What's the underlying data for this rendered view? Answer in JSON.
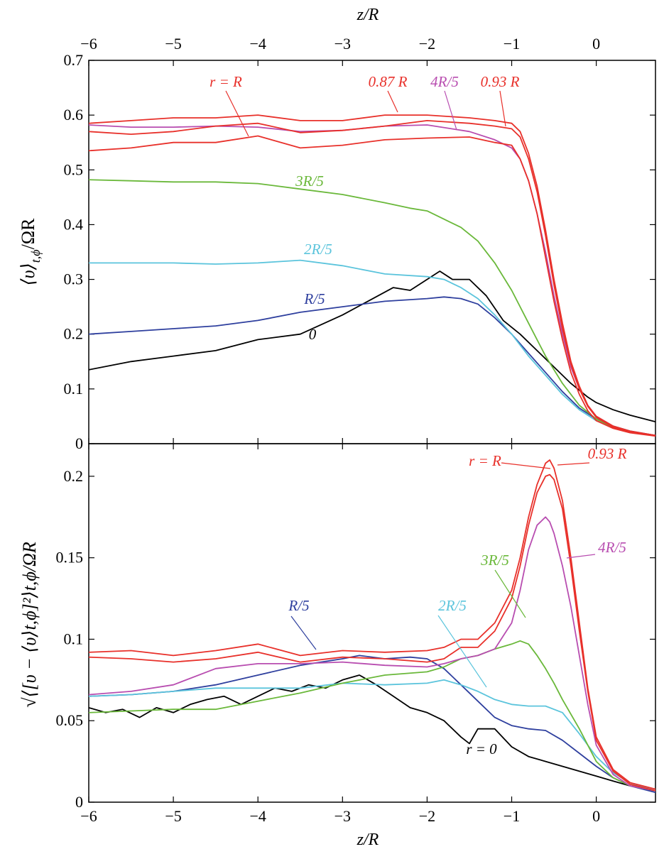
{
  "chart_data": [
    {
      "type": "line",
      "panel": "top",
      "top_xlabel": "z/R",
      "xlabel": "",
      "ylabel": "⟨υ⟩",
      "ylabel_sub": "t,ϕ",
      "ylabel_tail": "/ΩR",
      "xlim": [
        -6,
        0.7
      ],
      "ylim": [
        0,
        0.7
      ],
      "x_ticks": [
        -6,
        -5,
        -4,
        -3,
        -2,
        -1,
        0
      ],
      "x_tick_labels": [
        "−6",
        "−5",
        "−4",
        "−3",
        "−2",
        "−1",
        "0"
      ],
      "y_ticks": [
        0,
        0.1,
        0.2,
        0.3,
        0.4,
        0.5,
        0.6,
        0.7
      ],
      "y_tick_labels": [
        "0",
        "0.1",
        "0.2",
        "0.3",
        "0.4",
        "0.5",
        "0.6",
        "0.7"
      ],
      "series": [
        {
          "name": "0",
          "color": "#000000",
          "x": [
            -6,
            -5.5,
            -5,
            -4.5,
            -4,
            -3.5,
            -3,
            -2.7,
            -2.4,
            -2.2,
            -2,
            -1.85,
            -1.7,
            -1.5,
            -1.3,
            -1.1,
            -0.9,
            -0.7,
            -0.5,
            -0.3,
            -0.1,
            0,
            0.2,
            0.4,
            0.7
          ],
          "y": [
            0.135,
            0.15,
            0.16,
            0.17,
            0.19,
            0.2,
            0.235,
            0.26,
            0.285,
            0.28,
            0.3,
            0.315,
            0.3,
            0.3,
            0.27,
            0.225,
            0.2,
            0.17,
            0.14,
            0.11,
            0.085,
            0.075,
            0.062,
            0.052,
            0.04
          ]
        },
        {
          "name": "R/5",
          "color": "#2e3f9e",
          "x": [
            -6,
            -5.5,
            -5,
            -4.5,
            -4,
            -3.5,
            -3,
            -2.5,
            -2,
            -1.8,
            -1.6,
            -1.4,
            -1.2,
            -1,
            -0.8,
            -0.6,
            -0.4,
            -0.2,
            0,
            0.2,
            0.4,
            0.7
          ],
          "y": [
            0.2,
            0.205,
            0.21,
            0.215,
            0.225,
            0.24,
            0.25,
            0.26,
            0.265,
            0.268,
            0.265,
            0.255,
            0.23,
            0.2,
            0.165,
            0.13,
            0.095,
            0.065,
            0.045,
            0.032,
            0.023,
            0.015
          ]
        },
        {
          "name": "2R/5",
          "color": "#5bc4dc",
          "x": [
            -6,
            -5.5,
            -5,
            -4.5,
            -4,
            -3.5,
            -3,
            -2.5,
            -2,
            -1.8,
            -1.6,
            -1.4,
            -1.2,
            -1,
            -0.8,
            -0.6,
            -0.4,
            -0.2,
            0,
            0.2,
            0.4,
            0.7
          ],
          "y": [
            0.33,
            0.33,
            0.33,
            0.328,
            0.33,
            0.335,
            0.325,
            0.31,
            0.305,
            0.3,
            0.285,
            0.265,
            0.235,
            0.2,
            0.16,
            0.125,
            0.09,
            0.062,
            0.042,
            0.03,
            0.022,
            0.015
          ]
        },
        {
          "name": "3R/5",
          "color": "#6ab83a",
          "x": [
            -6,
            -5.5,
            -5,
            -4.5,
            -4,
            -3.5,
            -3,
            -2.5,
            -2.2,
            -2,
            -1.8,
            -1.6,
            -1.4,
            -1.2,
            -1,
            -0.8,
            -0.6,
            -0.4,
            -0.2,
            0,
            0.2,
            0.4,
            0.7
          ],
          "y": [
            0.482,
            0.48,
            0.478,
            0.478,
            0.475,
            0.465,
            0.455,
            0.44,
            0.43,
            0.425,
            0.41,
            0.395,
            0.37,
            0.33,
            0.28,
            0.22,
            0.16,
            0.11,
            0.07,
            0.045,
            0.03,
            0.022,
            0.015
          ]
        },
        {
          "name": "4R/5",
          "color": "#b84db0",
          "x": [
            -6,
            -5.5,
            -5,
            -4.5,
            -4,
            -3.5,
            -3,
            -2.5,
            -2,
            -1.5,
            -1.2,
            -1,
            -0.9,
            -0.8,
            -0.7,
            -0.6,
            -0.5,
            -0.4,
            -0.3,
            -0.2,
            -0.1,
            0,
            0.2,
            0.4,
            0.7
          ],
          "y": [
            0.582,
            0.578,
            0.578,
            0.58,
            0.578,
            0.57,
            0.572,
            0.58,
            0.582,
            0.57,
            0.555,
            0.54,
            0.52,
            0.48,
            0.42,
            0.35,
            0.27,
            0.2,
            0.14,
            0.1,
            0.07,
            0.05,
            0.032,
            0.022,
            0.015
          ]
        },
        {
          "name": "r = R",
          "color": "#e8302a",
          "x": [
            -6,
            -5.5,
            -5,
            -4.5,
            -4,
            -3.5,
            -3,
            -2.5,
            -2,
            -1.5,
            -1.2,
            -1,
            -0.9,
            -0.8,
            -0.7,
            -0.6,
            -0.5,
            -0.4,
            -0.3,
            -0.2,
            -0.1,
            0,
            0.2,
            0.4,
            0.7
          ],
          "y": [
            0.535,
            0.54,
            0.55,
            0.55,
            0.562,
            0.54,
            0.545,
            0.555,
            0.558,
            0.56,
            0.55,
            0.545,
            0.52,
            0.48,
            0.42,
            0.34,
            0.26,
            0.19,
            0.13,
            0.09,
            0.06,
            0.042,
            0.028,
            0.02,
            0.014
          ]
        },
        {
          "name": "0.87 R",
          "color": "#e8302a",
          "x": [
            -6,
            -5.5,
            -5,
            -4.5,
            -4,
            -3.5,
            -3,
            -2.5,
            -2,
            -1.5,
            -1.2,
            -1,
            -0.9,
            -0.8,
            -0.7,
            -0.6,
            -0.5,
            -0.4,
            -0.3,
            -0.2,
            -0.1,
            0,
            0.2,
            0.4,
            0.7
          ],
          "y": [
            0.57,
            0.565,
            0.57,
            0.58,
            0.585,
            0.568,
            0.572,
            0.58,
            0.59,
            0.585,
            0.58,
            0.575,
            0.56,
            0.52,
            0.46,
            0.38,
            0.29,
            0.21,
            0.145,
            0.1,
            0.068,
            0.048,
            0.03,
            0.022,
            0.015
          ]
        },
        {
          "name": "0.93 R",
          "color": "#e8302a",
          "x": [
            -6,
            -5.5,
            -5,
            -4.5,
            -4,
            -3.5,
            -3,
            -2.5,
            -2,
            -1.5,
            -1.2,
            -1,
            -0.9,
            -0.8,
            -0.7,
            -0.6,
            -0.5,
            -0.4,
            -0.3,
            -0.2,
            -0.1,
            0,
            0.2,
            0.4,
            0.7
          ],
          "y": [
            0.585,
            0.59,
            0.595,
            0.595,
            0.6,
            0.59,
            0.59,
            0.6,
            0.6,
            0.595,
            0.59,
            0.585,
            0.57,
            0.53,
            0.47,
            0.39,
            0.3,
            0.22,
            0.15,
            0.105,
            0.07,
            0.05,
            0.032,
            0.023,
            0.015
          ]
        }
      ],
      "annotations": [
        {
          "text": "r = R",
          "color": "#e8302a"
        },
        {
          "text": "0.87 R",
          "color": "#e8302a"
        },
        {
          "text": "4R/5",
          "color": "#b84db0"
        },
        {
          "text": "0.93 R",
          "color": "#e8302a"
        },
        {
          "text": "3R/5",
          "color": "#6ab83a"
        },
        {
          "text": "2R/5",
          "color": "#5bc4dc"
        },
        {
          "text": "R/5",
          "color": "#2e3f9e"
        },
        {
          "text": "0",
          "color": "#000000"
        }
      ]
    },
    {
      "type": "line",
      "panel": "bottom",
      "xlabel": "z/R",
      "ylabel": "√⟨[υ − ⟨υ⟩t,ϕ]²⟩t,ϕ/ΩR",
      "xlim": [
        -6,
        0.7
      ],
      "ylim": [
        0,
        0.22
      ],
      "x_ticks": [
        -6,
        -5,
        -4,
        -3,
        -2,
        -1,
        0
      ],
      "x_tick_labels": [
        "−6",
        "−5",
        "−4",
        "−3",
        "−2",
        "−1",
        "0"
      ],
      "y_ticks": [
        0,
        0.05,
        0.1,
        0.15,
        0.2
      ],
      "y_tick_labels": [
        "0",
        "0.05",
        "0.1",
        "0.15",
        "0.2"
      ],
      "series": [
        {
          "name": "r = 0",
          "color": "#000000",
          "x": [
            -6,
            -5.8,
            -5.6,
            -5.4,
            -5.2,
            -5,
            -4.8,
            -4.6,
            -4.4,
            -4.2,
            -4,
            -3.8,
            -3.6,
            -3.4,
            -3.2,
            -3,
            -2.8,
            -2.6,
            -2.4,
            -2.2,
            -2,
            -1.8,
            -1.6,
            -1.5,
            -1.4,
            -1.2,
            -1,
            -0.8,
            -0.6,
            -0.4,
            -0.2,
            0,
            0.2,
            0.4,
            0.7
          ],
          "y": [
            0.058,
            0.055,
            0.057,
            0.052,
            0.058,
            0.055,
            0.06,
            0.063,
            0.065,
            0.06,
            0.065,
            0.07,
            0.068,
            0.072,
            0.07,
            0.075,
            0.078,
            0.072,
            0.065,
            0.058,
            0.055,
            0.05,
            0.04,
            0.036,
            0.045,
            0.045,
            0.034,
            0.028,
            0.025,
            0.022,
            0.019,
            0.016,
            0.013,
            0.01,
            0.007
          ]
        },
        {
          "name": "R/5",
          "color": "#2e3f9e",
          "x": [
            -6,
            -5.5,
            -5,
            -4.5,
            -4,
            -3.5,
            -3,
            -2.8,
            -2.5,
            -2.2,
            -2,
            -1.8,
            -1.6,
            -1.4,
            -1.2,
            -1,
            -0.8,
            -0.6,
            -0.4,
            -0.2,
            0,
            0.2,
            0.4,
            0.7
          ],
          "y": [
            0.065,
            0.066,
            0.068,
            0.072,
            0.078,
            0.084,
            0.088,
            0.09,
            0.088,
            0.089,
            0.088,
            0.082,
            0.072,
            0.062,
            0.052,
            0.047,
            0.045,
            0.044,
            0.038,
            0.03,
            0.022,
            0.015,
            0.01,
            0.006
          ]
        },
        {
          "name": "2R/5",
          "color": "#5bc4dc",
          "x": [
            -6,
            -5.5,
            -5,
            -4.5,
            -4,
            -3.5,
            -3,
            -2.5,
            -2,
            -1.8,
            -1.6,
            -1.4,
            -1.2,
            -1,
            -0.8,
            -0.6,
            -0.4,
            -0.2,
            0,
            0.2,
            0.4,
            0.7
          ],
          "y": [
            0.065,
            0.066,
            0.068,
            0.07,
            0.07,
            0.07,
            0.073,
            0.072,
            0.073,
            0.075,
            0.072,
            0.068,
            0.063,
            0.06,
            0.059,
            0.059,
            0.055,
            0.042,
            0.028,
            0.018,
            0.012,
            0.007
          ]
        },
        {
          "name": "3R/5",
          "color": "#6ab83a",
          "x": [
            -6,
            -5.5,
            -5,
            -4.5,
            -4,
            -3.5,
            -3,
            -2.5,
            -2,
            -1.8,
            -1.6,
            -1.4,
            -1.2,
            -1,
            -0.9,
            -0.8,
            -0.7,
            -0.6,
            -0.5,
            -0.4,
            -0.2,
            0,
            0.2,
            0.4,
            0.7
          ],
          "y": [
            0.055,
            0.056,
            0.057,
            0.057,
            0.062,
            0.067,
            0.073,
            0.078,
            0.08,
            0.083,
            0.088,
            0.09,
            0.094,
            0.097,
            0.099,
            0.097,
            0.09,
            0.082,
            0.073,
            0.063,
            0.045,
            0.025,
            0.015,
            0.01,
            0.007
          ]
        },
        {
          "name": "4R/5",
          "color": "#b84db0",
          "x": [
            -6,
            -5.5,
            -5,
            -4.5,
            -4,
            -3.5,
            -3,
            -2.5,
            -2,
            -1.8,
            -1.6,
            -1.4,
            -1.2,
            -1,
            -0.9,
            -0.8,
            -0.7,
            -0.6,
            -0.55,
            -0.5,
            -0.4,
            -0.3,
            -0.2,
            -0.1,
            0,
            0.2,
            0.4,
            0.7
          ],
          "y": [
            0.066,
            0.068,
            0.072,
            0.082,
            0.085,
            0.085,
            0.086,
            0.084,
            0.083,
            0.085,
            0.088,
            0.09,
            0.094,
            0.11,
            0.13,
            0.155,
            0.17,
            0.175,
            0.172,
            0.165,
            0.145,
            0.12,
            0.09,
            0.06,
            0.035,
            0.017,
            0.01,
            0.007
          ]
        },
        {
          "name": "r = R",
          "color": "#e8302a",
          "x": [
            -6,
            -5.5,
            -5,
            -4.5,
            -4,
            -3.5,
            -3,
            -2.5,
            -2,
            -1.8,
            -1.6,
            -1.4,
            -1.2,
            -1,
            -0.9,
            -0.8,
            -0.7,
            -0.6,
            -0.55,
            -0.5,
            -0.4,
            -0.3,
            -0.2,
            -0.1,
            0,
            0.2,
            0.4,
            0.7
          ],
          "y": [
            0.092,
            0.093,
            0.09,
            0.093,
            0.097,
            0.09,
            0.093,
            0.092,
            0.093,
            0.095,
            0.1,
            0.1,
            0.11,
            0.13,
            0.15,
            0.175,
            0.195,
            0.208,
            0.21,
            0.205,
            0.185,
            0.15,
            0.11,
            0.07,
            0.04,
            0.02,
            0.012,
            0.008
          ]
        },
        {
          "name": "0.93 R",
          "color": "#e8302a",
          "x": [
            -6,
            -5.5,
            -5,
            -4.5,
            -4,
            -3.5,
            -3,
            -2.5,
            -2,
            -1.8,
            -1.6,
            -1.4,
            -1.2,
            -1,
            -0.9,
            -0.8,
            -0.7,
            -0.6,
            -0.55,
            -0.5,
            -0.4,
            -0.3,
            -0.2,
            -0.1,
            0,
            0.2,
            0.4,
            0.7
          ],
          "y": [
            0.089,
            0.088,
            0.086,
            0.088,
            0.092,
            0.086,
            0.089,
            0.088,
            0.086,
            0.088,
            0.095,
            0.095,
            0.105,
            0.125,
            0.145,
            0.17,
            0.19,
            0.2,
            0.201,
            0.198,
            0.18,
            0.145,
            0.105,
            0.068,
            0.038,
            0.019,
            0.011,
            0.007
          ]
        }
      ],
      "annotations": [
        {
          "text": "r = R",
          "color": "#e8302a"
        },
        {
          "text": "0.93 R",
          "color": "#e8302a"
        },
        {
          "text": "4R/5",
          "color": "#b84db0"
        },
        {
          "text": "3R/5",
          "color": "#6ab83a"
        },
        {
          "text": "R/5",
          "color": "#2e3f9e"
        },
        {
          "text": "2R/5",
          "color": "#5bc4dc"
        },
        {
          "text": "r = 0",
          "color": "#000000"
        }
      ]
    }
  ]
}
